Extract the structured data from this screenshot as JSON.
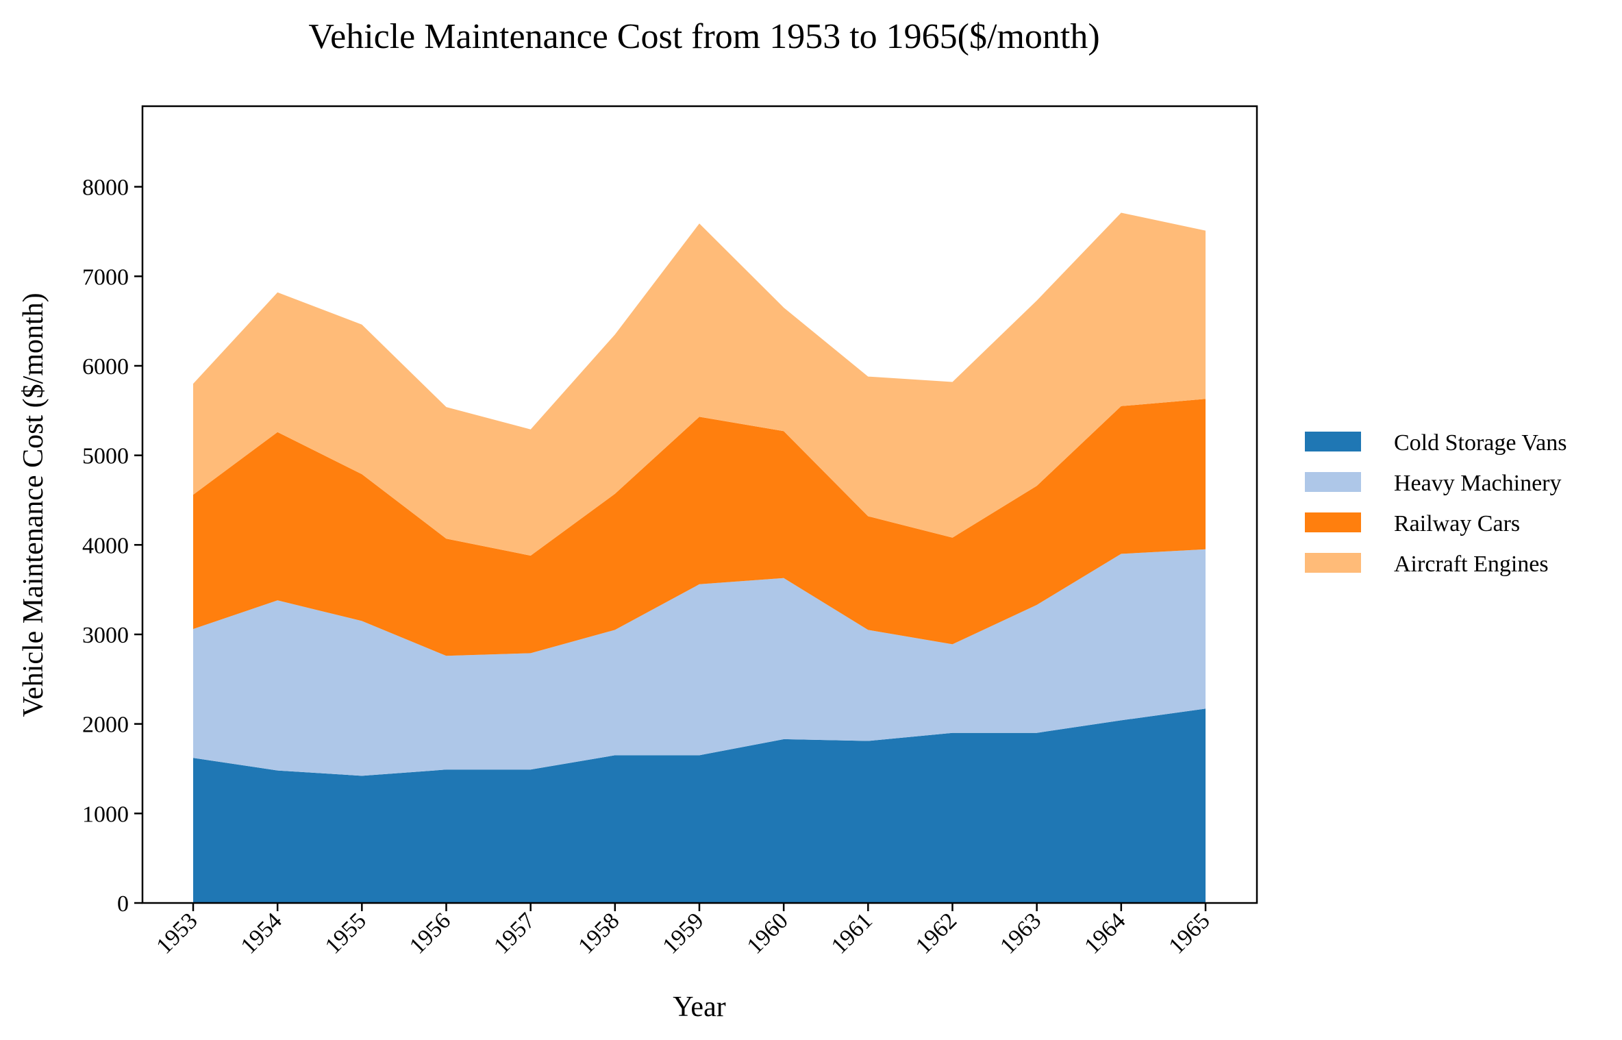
{
  "chart_data": {
    "type": "area",
    "stacked": true,
    "title": "Vehicle Maintenance Cost from 1953 to 1965($/month)",
    "xlabel": "Year",
    "ylabel": "Vehicle Maintenance Cost ($/month)",
    "ylim": [
      0,
      8900
    ],
    "yticks": [
      0,
      1000,
      2000,
      3000,
      4000,
      5000,
      6000,
      7000,
      8000
    ],
    "ytick_labels": [
      "0",
      "1000",
      "2000",
      "3000",
      "4000",
      "5000",
      "6000",
      "7000",
      "8000"
    ],
    "x": [
      "1953",
      "1954",
      "1955",
      "1956",
      "1957",
      "1958",
      "1959",
      "1960",
      "1961",
      "1962",
      "1963",
      "1964",
      "1965"
    ],
    "legend_position": "right",
    "series": [
      {
        "name": "Cold Storage Vans",
        "color": "#1f77b4",
        "values": [
          1620,
          1480,
          1420,
          1490,
          1490,
          1650,
          1650,
          1830,
          1810,
          1900,
          1900,
          2040,
          2170
        ]
      },
      {
        "name": "Heavy Machinery",
        "color": "#aec7e8",
        "values": [
          1440,
          1900,
          1730,
          1270,
          1300,
          1400,
          1910,
          1800,
          1240,
          990,
          1430,
          1860,
          1780
        ]
      },
      {
        "name": "Railway Cars",
        "color": "#ff7f0e",
        "values": [
          1500,
          1880,
          1640,
          1310,
          1090,
          1520,
          1870,
          1640,
          1270,
          1190,
          1330,
          1650,
          1680
        ]
      },
      {
        "name": "Aircraft Engines",
        "color": "#ffbb78",
        "values": [
          1240,
          1560,
          1670,
          1470,
          1410,
          1780,
          2160,
          1380,
          1560,
          1740,
          2070,
          2160,
          1880
        ]
      }
    ]
  }
}
